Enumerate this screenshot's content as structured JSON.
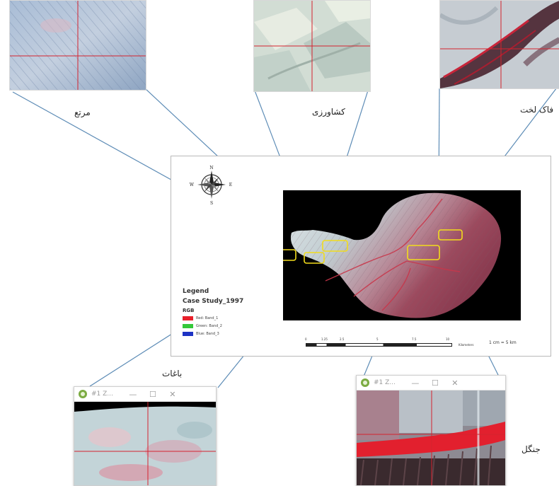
{
  "labels": {
    "rangeland": "مرتع",
    "agriculture": "کشاورزی",
    "bare_rock": "فاک لخت",
    "gardens": "باغات",
    "forest": "جنگل"
  },
  "legend": {
    "title": "Legend",
    "layer": "Case Study_1997",
    "rgb_label": "RGB",
    "items": [
      {
        "label": "Red: Band_1",
        "color": "#e8202a"
      },
      {
        "label": "Green: Band_2",
        "color": "#34c83a"
      },
      {
        "label": "Blue: Band_3",
        "color": "#1d33c4"
      }
    ]
  },
  "compass": {
    "n": "N",
    "s": "S",
    "e": "E",
    "w": "W"
  },
  "scale": {
    "ticks": [
      "0",
      "1.25",
      "2.5",
      "5",
      "7.5",
      "10"
    ],
    "unit": "Kilometers",
    "ratio": "1 cm = 5 km"
  },
  "windows": [
    {
      "title": "#1 Z...",
      "min": "—",
      "max": "☐",
      "close": "✕"
    },
    {
      "title": "#1 Z...",
      "min": "—",
      "max": "☐",
      "close": "✕"
    }
  ],
  "colors": {
    "highlight_box": "#f2dc1c",
    "callout_line": "#5d8cb6",
    "crosshair": "#d4232f"
  }
}
